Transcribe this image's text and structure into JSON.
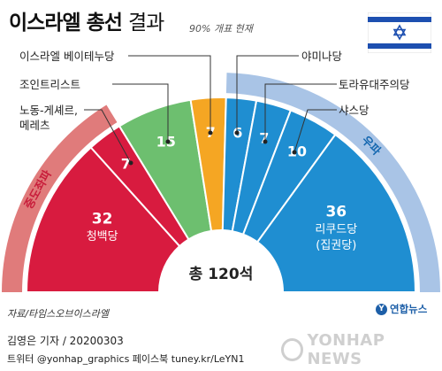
{
  "header": {
    "title_main": "이스라엘 총선",
    "title_sub": "결과",
    "subtitle": "90% 개표 현재"
  },
  "chart_data": {
    "type": "parliament-semicircle",
    "total_label": "총 120석",
    "seats_total": 120,
    "blocs": [
      {
        "name": "중도좌파",
        "color": "#e07b7b"
      },
      {
        "name": "우파",
        "color": "#a9c4e6"
      }
    ],
    "parties": [
      {
        "name": "청백당",
        "seats": 32,
        "color": "#d81b3f",
        "bloc": "중도좌파"
      },
      {
        "name": "노동-게셰르, 메레츠",
        "seats": 7,
        "color": "#d81b3f",
        "bloc": "중도좌파"
      },
      {
        "name": "조인트리스트",
        "seats": 15,
        "color": "#6dbf6f",
        "bloc": ""
      },
      {
        "name": "이스라엘 베이테누당",
        "seats": 7,
        "color": "#f5a623",
        "bloc": ""
      },
      {
        "name": "야미나당",
        "seats": 6,
        "color": "#1f8ed1",
        "bloc": "우파"
      },
      {
        "name": "토라유대주의당",
        "seats": 7,
        "color": "#1f8ed1",
        "bloc": "우파"
      },
      {
        "name": "샤스당",
        "seats": 10,
        "color": "#1f8ed1",
        "bloc": "우파"
      },
      {
        "name": "리쿠드당 (집권당)",
        "seats": 36,
        "color": "#1f8ed1",
        "bloc": "우파"
      }
    ],
    "inner_labels": {
      "bluewhite_line1": "청백당",
      "likud_line1": "리쿠드당",
      "likud_line2": "(집권당)",
      "labor_line1": "노동-게셰르,",
      "labor_line2": "메레츠"
    }
  },
  "footer": {
    "source": "자료/타임스오브이스라엘",
    "logo": "연합뉴스",
    "credit": "김영은 기자 / 20200303",
    "social": "트위터 @yonhap_graphics  페이스북 tuney.kr/LeYN1",
    "watermark": "YONHAP NEWS"
  }
}
